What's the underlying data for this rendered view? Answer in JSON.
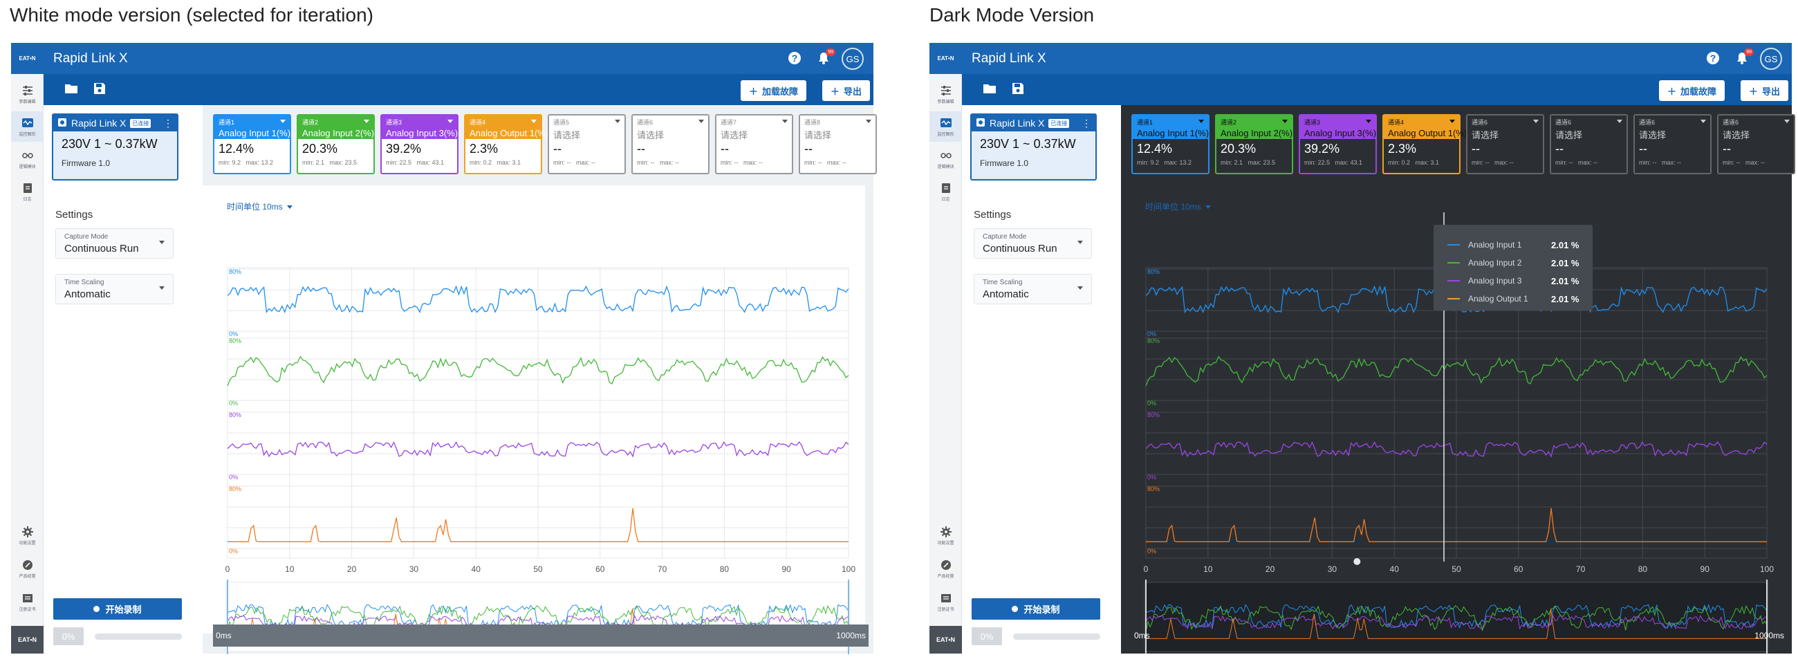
{
  "labels": {
    "light": "White mode version (selected for iteration)",
    "dark": "Dark Mode Version"
  },
  "app": {
    "title": "Rapid Link X",
    "notif_count": "99",
    "avatar": "GS",
    "brand": "EAT•N"
  },
  "rail": [
    {
      "icon": "sliders-icon",
      "label": "参数编辑"
    },
    {
      "icon": "monitor-icon",
      "label": "监控图形"
    },
    {
      "icon": "logic-icon",
      "label": "逻辑模块"
    },
    {
      "icon": "log-icon",
      "label": "日志"
    }
  ],
  "rail_bottom": [
    {
      "icon": "gear-icon",
      "label": "功能设置"
    },
    {
      "icon": "product-icon",
      "label": "产品经营"
    },
    {
      "icon": "register-icon",
      "label": "注册证书"
    }
  ],
  "toolbar": {
    "load_fault": "加载故障",
    "export": "导出"
  },
  "device": {
    "name": "Rapid Link X",
    "tag": "已连接",
    "power": "230V 1 ~  0.37kW",
    "firmware": "Firmware 1.0"
  },
  "settings": {
    "title": "Settings",
    "capture_label": "Capture Mode",
    "capture_value": "Continuous Run",
    "scaling_label": "Time Scaling",
    "scaling_value": "Antomatic"
  },
  "record": {
    "label": "开始录制",
    "percent": "0%"
  },
  "channels": [
    {
      "code": "通道1",
      "name": "Analog Input 1(%)",
      "value": "12.4%",
      "min": "min: 9.2",
      "max": "max: 13.2",
      "color": "#1f8ff0"
    },
    {
      "code": "通道2",
      "name": "Analog Input 2(%)",
      "value": "20.3%",
      "min": "min: 2.1",
      "max": "max: 23.5",
      "color": "#46b83a"
    },
    {
      "code": "通道3",
      "name": "Analog Input 3(%)",
      "value": "39.2%",
      "min": "min: 22.5",
      "max": "max: 43.1",
      "color": "#9b45e4"
    },
    {
      "code": "通道4",
      "name": "Analog Output 1(%)",
      "value": "2.3%",
      "min": "min: 0.2",
      "max": "max: 3.1",
      "color": "#f0a020"
    },
    {
      "code": "通道5",
      "name": "请选择",
      "value": "--",
      "min": "min: --",
      "max": "max: --",
      "color": ""
    },
    {
      "code": "通道6",
      "name": "请选择",
      "value": "--",
      "min": "min: --",
      "max": "max: --",
      "color": ""
    },
    {
      "code": "通道7",
      "name": "请选择",
      "value": "--",
      "min": "min: --",
      "max": "max: --",
      "color": ""
    },
    {
      "code": "通道8",
      "name": "请选择",
      "value": "--",
      "min": "min: --",
      "max": "max: --",
      "color": ""
    }
  ],
  "channels_dark_codes": [
    "通道1",
    "通道2",
    "通道3",
    "通道4",
    "通道6",
    "通道6",
    "通道6",
    "通道6"
  ],
  "chart": {
    "time_unit": "时间单位 10ms",
    "start": "0ms",
    "end": "1000ms"
  },
  "tooltip": [
    {
      "name": "Analog Input 1",
      "value": "2.01 %",
      "color": "#1f8ff0"
    },
    {
      "name": "Analog Input 2",
      "value": "2.01 %",
      "color": "#46b83a"
    },
    {
      "name": "Analog Input 3",
      "value": "2.01 %",
      "color": "#9b45e4"
    },
    {
      "name": "Analog Output 1",
      "value": "2.01 %",
      "color": "#f0a020"
    }
  ],
  "chart_data": {
    "type": "line",
    "x": [
      0,
      10,
      20,
      30,
      40,
      50,
      60,
      70,
      80,
      90,
      100
    ],
    "xlim": [
      0,
      100
    ],
    "panels": [
      {
        "series": "Analog Input 1",
        "ylim": [
          0,
          80
        ],
        "ticks": [
          "80%",
          "0%"
        ],
        "color": "#1f8ff0"
      },
      {
        "series": "Analog Input 2",
        "ylim": [
          0,
          80
        ],
        "ticks": [
          "80%",
          "0%"
        ],
        "color": "#46b83a"
      },
      {
        "series": "Analog Input 3",
        "ylim": [
          0,
          80
        ],
        "ticks": [
          "80%",
          "0%"
        ],
        "color": "#9b45e4"
      },
      {
        "series": "Analog Output 1",
        "ylim": [
          0,
          80
        ],
        "ticks": [
          "80%",
          "0%"
        ],
        "color": "#f07a20"
      }
    ],
    "grid": true
  }
}
